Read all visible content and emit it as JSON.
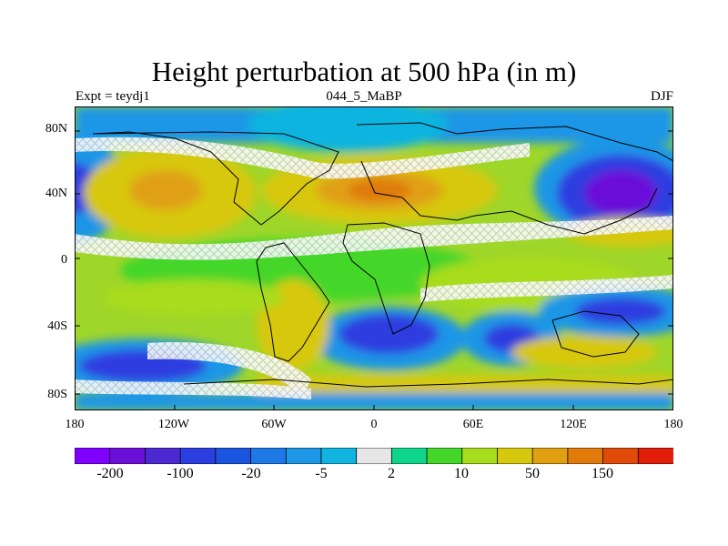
{
  "title": "Height perturbation at 500 hPa (in m)",
  "subtitle_left": "Expt = teydj1",
  "subtitle_center": "044_5_MaBP",
  "subtitle_right": "DJF",
  "y_ticks": [
    "80N",
    "40N",
    "0",
    "40S",
    "80S"
  ],
  "x_ticks": [
    "180",
    "120W",
    "60W",
    "0",
    "60E",
    "120E",
    "180"
  ],
  "colorbar": {
    "colors": [
      "#7f00ff",
      "#6a0fd8",
      "#4b2ad2",
      "#2d3ee0",
      "#1a55e0",
      "#1e78e6",
      "#1e96e6",
      "#11b4e0",
      "#e6e6e6",
      "#0fd48c",
      "#45d62a",
      "#a8dc1e",
      "#d7c80f",
      "#e0a012",
      "#e07a0a",
      "#e04b0a",
      "#e01e0a"
    ],
    "labels": [
      "-200",
      "-100",
      "-20",
      "-5",
      "2",
      "10",
      "50",
      "150"
    ]
  },
  "field": {
    "type": "contour-fill",
    "projection": "equidistant-cylindrical",
    "lon_range": [
      -180,
      180
    ],
    "lat_range": [
      -90,
      90
    ],
    "positive_centers": [
      "North Atlantic/Europe (~45N, 0)",
      "North America (~45N, 120W)",
      "Northwest Pacific (~30N, 150E)",
      "Southern Ocean band (~60S)"
    ],
    "negative_centers": [
      "North Pacific (~45N, 150E)",
      "North Pacific east (~45N, 180)",
      "South Atlantic (~40S, 20W)",
      "South Indian (~40S, 60E)",
      "South Pacific (~60S, 150W)",
      "South Pacific (~30S, 120E)"
    ]
  }
}
